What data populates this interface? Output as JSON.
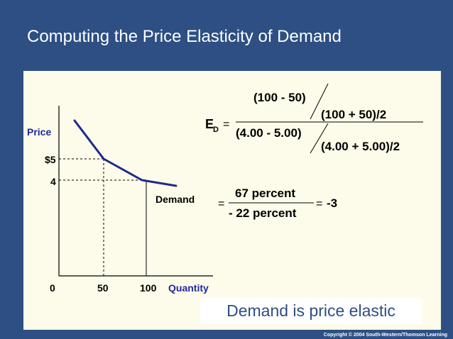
{
  "slide": {
    "title": "Computing the Price Elasticity of Demand",
    "copyright": "Copyright © 2004  South-Western/Thomson Learning",
    "conclusion": "Demand is price elastic"
  },
  "graph": {
    "y_axis_label": "Price",
    "x_axis_label": "Quantity",
    "origin_label": "0",
    "y_ticks": [
      "$5",
      "4"
    ],
    "x_ticks": [
      "50",
      "100"
    ],
    "curve_label": "Demand",
    "curve_color": "#1e2a8a",
    "label_color": "#1e2aa0"
  },
  "formula": {
    "symbol": "E",
    "subscript": "D",
    "equals": "=",
    "top_numerator": "(100 - 50)",
    "top_denominator": "(100 + 50)/2",
    "bottom_numerator": "(4.00 - 5.00)",
    "bottom_denominator": "(4.00 + 5.00)/2",
    "second_equals": "=",
    "pct_numerator": "67 percent",
    "pct_denominator": "- 22 percent",
    "result_equals": "=",
    "result": "-3"
  }
}
